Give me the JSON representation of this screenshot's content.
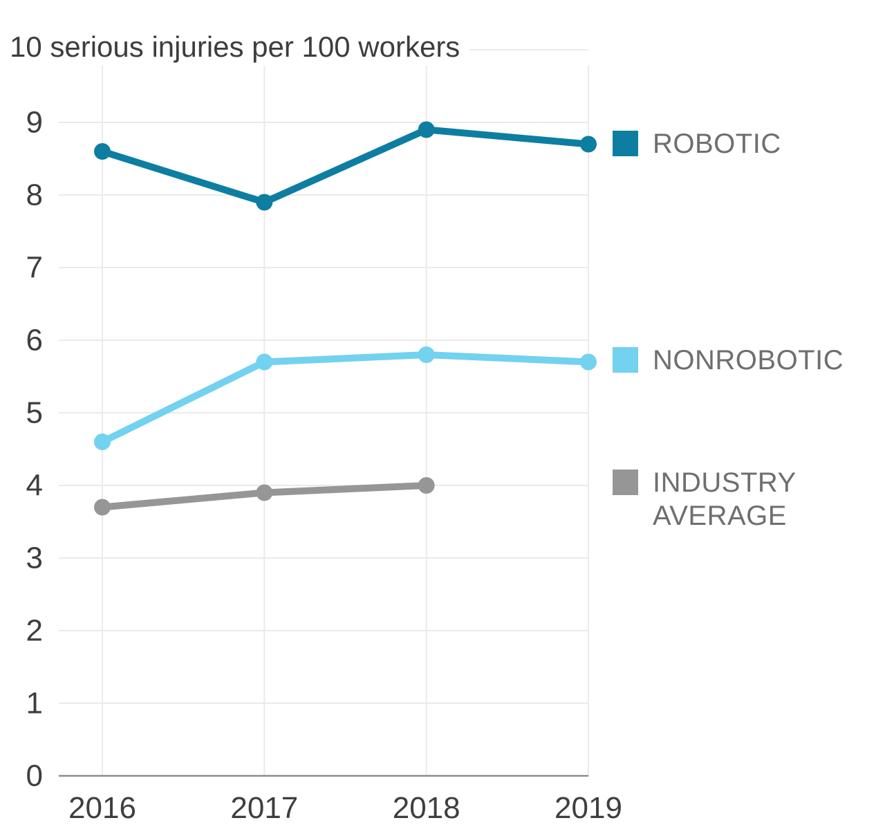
{
  "chart_data": {
    "type": "line",
    "title": "10 serious injuries per 100 workers",
    "x": [
      "2016",
      "2017",
      "2018",
      "2019"
    ],
    "x_tick_labels": [
      "2016",
      "2017",
      "2018",
      "2019"
    ],
    "y_ticks": [
      0,
      1,
      2,
      3,
      4,
      5,
      6,
      7,
      8,
      9
    ],
    "ylim": [
      0,
      10
    ],
    "ylabel": "serious injuries per 100 workers",
    "grid": true,
    "legend_position": "right",
    "series": [
      {
        "name": "ROBOTIC",
        "color": "#0d7ea2",
        "values": [
          8.6,
          7.9,
          8.9,
          8.7
        ]
      },
      {
        "name": "NONROBOTIC",
        "color": "#72d2ef",
        "values": [
          4.6,
          5.7,
          5.8,
          5.7
        ]
      },
      {
        "name": "INDUSTRY AVERAGE",
        "color": "#969696",
        "values": [
          3.7,
          3.9,
          4.0,
          null
        ]
      }
    ]
  },
  "colors": {
    "grid": "#eaeaea",
    "axis": "#8c8c8c",
    "tick_text": "#3e3e3e",
    "title_text": "#3d3d3d",
    "legend_text": "#6e6e6e",
    "background": "#ffffff"
  }
}
